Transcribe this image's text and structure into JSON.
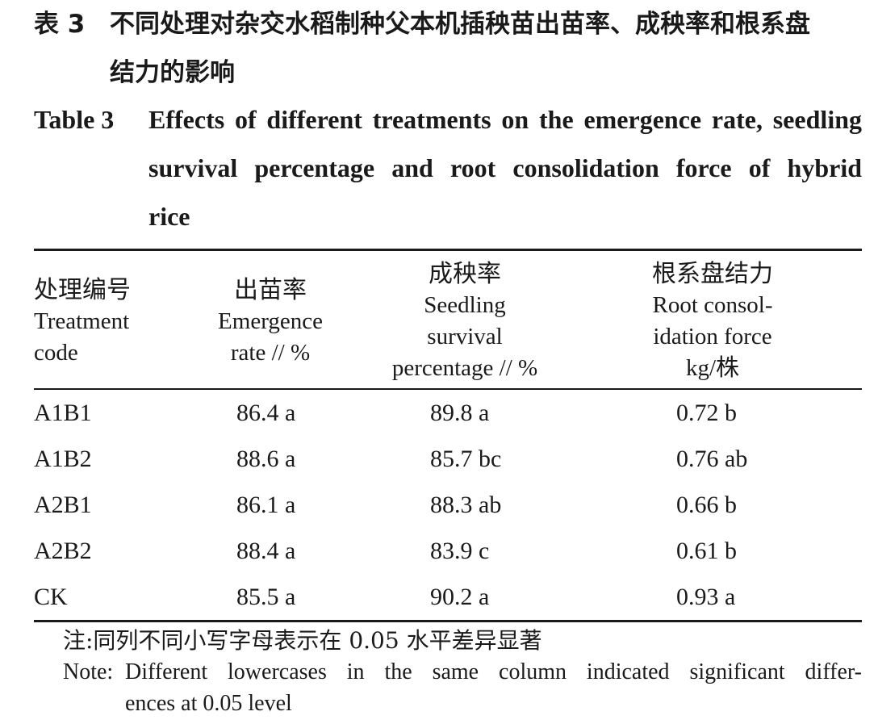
{
  "caption_cn": {
    "label": "表 3",
    "line1": "不同处理对杂交水稻制种父本机插秧苗出苗率、成秧率和根系盘",
    "line2": "结力的影响"
  },
  "caption_en": {
    "label": "Table 3",
    "line1": "Effects of different treatments on the emergence rate, seedling",
    "line2": "survival percentage and root consolidation force of hybrid",
    "line3": "rice"
  },
  "table": {
    "headers": [
      {
        "cn": "处理编号",
        "en_lines": [
          "Treatment",
          "code"
        ]
      },
      {
        "cn": "出苗率",
        "en_lines": [
          "Emergence",
          "rate // %"
        ]
      },
      {
        "cn": "成秧率",
        "en_lines": [
          "Seedling",
          "survival",
          "percentage // %"
        ]
      },
      {
        "cn": "根系盘结力",
        "en_lines": [
          "Root consol-",
          "idation force",
          "kg/株"
        ]
      }
    ],
    "rows": [
      {
        "code": "A1B1",
        "emergence": "86.4 a",
        "survival": "89.8 a",
        "force": "0.72 b"
      },
      {
        "code": "A1B2",
        "emergence": "88.6 a",
        "survival": "85.7 bc",
        "force": "0.76 ab"
      },
      {
        "code": "A2B1",
        "emergence": "86.1 a",
        "survival": "88.3 ab",
        "force": "0.66 b"
      },
      {
        "code": "A2B2",
        "emergence": "88.4 a",
        "survival": "83.9 c",
        "force": "0.61 b"
      },
      {
        "code": "CK",
        "emergence": "85.5 a",
        "survival": "90.2 a",
        "force": "0.93 a"
      }
    ]
  },
  "note": {
    "cn": "注:同列不同小写字母表示在 0.05 水平差异显著",
    "en_label": "Note:",
    "en_line1": "Different lowercases in the same column indicated significant differ-",
    "en_line2": "ences at 0.05 level"
  }
}
